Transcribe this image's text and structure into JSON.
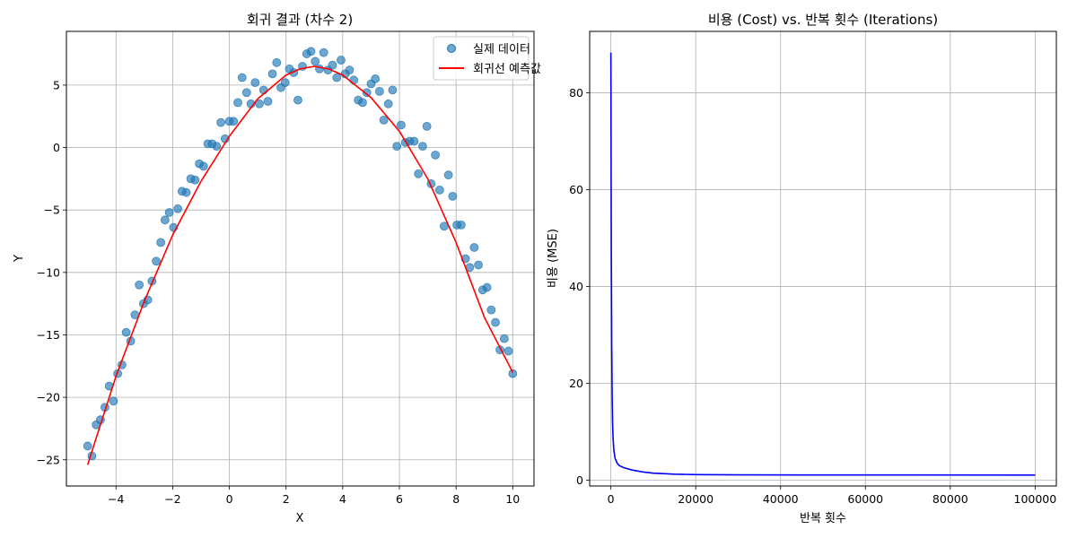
{
  "chart_data": [
    {
      "type": "scatter",
      "title": "회귀 결과 (차수 2)",
      "xlabel": "X",
      "ylabel": "Y",
      "xlim": [
        -5.75,
        10.75
      ],
      "ylim": [
        -27.1,
        9.3
      ],
      "xticks": [
        -4,
        -2,
        0,
        2,
        4,
        6,
        8,
        10
      ],
      "xtick_labels": [
        "−4",
        "−2",
        "0",
        "2",
        "4",
        "6",
        "8",
        "10"
      ],
      "yticks": [
        -25,
        -20,
        -15,
        -10,
        -5,
        0,
        5
      ],
      "ytick_labels": [
        "−25",
        "−20",
        "−15",
        "−10",
        "−5",
        "0",
        "5"
      ],
      "grid": true,
      "legend_position": "top-right",
      "colors": {
        "points": "#1f77b4",
        "fit": "#ff0000"
      },
      "series": [
        {
          "name": "실제 데이터",
          "kind": "scatter",
          "x": [
            -5.0,
            -4.85,
            -4.7,
            -4.55,
            -4.39,
            -4.24,
            -4.09,
            -3.94,
            -3.79,
            -3.64,
            -3.48,
            -3.33,
            -3.18,
            -3.03,
            -2.88,
            -2.73,
            -2.58,
            -2.42,
            -2.27,
            -2.12,
            -1.97,
            -1.82,
            -1.67,
            -1.52,
            -1.36,
            -1.21,
            -1.06,
            -0.91,
            -0.76,
            -0.61,
            -0.45,
            -0.3,
            -0.15,
            0.0,
            0.15,
            0.3,
            0.45,
            0.61,
            0.76,
            0.91,
            1.06,
            1.21,
            1.36,
            1.52,
            1.67,
            1.82,
            1.97,
            2.12,
            2.27,
            2.42,
            2.58,
            2.73,
            2.88,
            3.03,
            3.18,
            3.33,
            3.48,
            3.64,
            3.79,
            3.94,
            4.09,
            4.24,
            4.39,
            4.55,
            4.7,
            4.85,
            5.0,
            5.15,
            5.3,
            5.45,
            5.61,
            5.76,
            5.91,
            6.06,
            6.21,
            6.36,
            6.52,
            6.67,
            6.82,
            6.97,
            7.12,
            7.27,
            7.42,
            7.58,
            7.73,
            7.88,
            8.03,
            8.18,
            8.33,
            8.48,
            8.64,
            8.79,
            8.94,
            9.09,
            9.24,
            9.39,
            9.55,
            9.7,
            9.85,
            10.0
          ],
          "y": [
            -23.9,
            -24.7,
            -22.2,
            -21.8,
            -20.8,
            -19.1,
            -20.3,
            -18.1,
            -17.4,
            -14.8,
            -15.5,
            -13.4,
            -11.0,
            -12.5,
            -12.2,
            -10.7,
            -9.1,
            -7.6,
            -5.8,
            -5.2,
            -6.4,
            -4.9,
            -3.5,
            -3.6,
            -2.5,
            -2.6,
            -1.3,
            -1.5,
            0.3,
            0.3,
            0.1,
            2.0,
            0.7,
            2.1,
            2.1,
            3.6,
            5.6,
            4.4,
            3.5,
            5.2,
            3.5,
            4.6,
            3.7,
            5.9,
            6.8,
            4.8,
            5.2,
            6.3,
            6.0,
            3.8,
            6.5,
            7.5,
            7.7,
            6.9,
            6.3,
            7.6,
            6.2,
            6.6,
            5.6,
            7.0,
            5.9,
            6.2,
            5.4,
            3.8,
            3.6,
            4.4,
            5.1,
            5.5,
            4.5,
            2.2,
            3.5,
            4.6,
            0.1,
            1.8,
            0.4,
            0.5,
            0.5,
            -2.1,
            0.1,
            1.7,
            -2.9,
            -0.6,
            -3.4,
            -6.3,
            -2.2,
            -3.9,
            -6.2,
            -6.2,
            -8.9,
            -9.6,
            -8.0,
            -9.4,
            -11.4,
            -11.2,
            -13.0,
            -14.0,
            -16.2,
            -15.3,
            -16.3,
            -18.1
          ]
        },
        {
          "name": "회귀선 예측값",
          "kind": "line",
          "x": [
            -5.0,
            -4.0,
            -3.0,
            -2.0,
            -1.0,
            0.0,
            1.0,
            2.0,
            2.5,
            3.0,
            3.5,
            4.0,
            5.0,
            6.0,
            7.0,
            8.0,
            9.0,
            10.0
          ],
          "y": [
            -25.4,
            -18.3,
            -12.3,
            -7.0,
            -2.7,
            0.9,
            3.9,
            5.8,
            6.3,
            6.5,
            6.3,
            5.8,
            4.0,
            1.3,
            -2.5,
            -7.6,
            -13.6,
            -18.0
          ]
        }
      ]
    },
    {
      "type": "line",
      "title": "비용 (Cost) vs. 반복 횟수 (Iterations)",
      "xlabel": "반복 횟수",
      "ylabel": "비용 (MSE)",
      "xlim": [
        -5000,
        105000
      ],
      "ylim": [
        -1.2,
        92.7
      ],
      "xticks": [
        0,
        20000,
        40000,
        60000,
        80000,
        100000
      ],
      "xtick_labels": [
        "0",
        "20000",
        "40000",
        "60000",
        "80000",
        "100000"
      ],
      "yticks": [
        0,
        20,
        40,
        60,
        80
      ],
      "ytick_labels": [
        "0",
        "20",
        "40",
        "60",
        "80"
      ],
      "grid": true,
      "colors": {
        "line": "#0000ff"
      },
      "series": [
        {
          "x": [
            0,
            100,
            200,
            300,
            400,
            500,
            700,
            1000,
            1500,
            2000,
            3000,
            5000,
            7500,
            10000,
            15000,
            20000,
            30000,
            50000,
            100000
          ],
          "y": [
            88.3,
            48.0,
            28.0,
            17.5,
            12.0,
            9.0,
            6.2,
            4.5,
            3.5,
            3.0,
            2.6,
            2.1,
            1.7,
            1.45,
            1.25,
            1.15,
            1.1,
            1.08,
            1.06
          ]
        }
      ]
    }
  ]
}
